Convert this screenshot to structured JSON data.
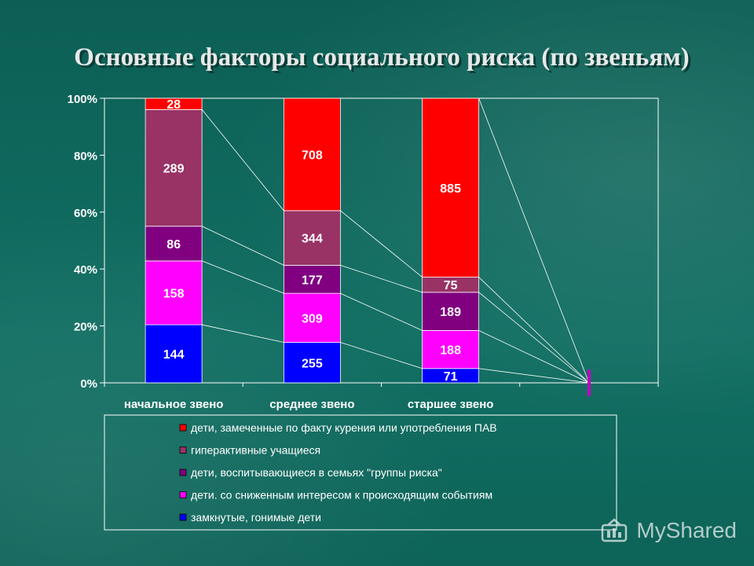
{
  "colors": {
    "background": "#0f6a5f",
    "red": "#ff0000",
    "mauve": "#993366",
    "purple": "#800080",
    "magenta": "#ff00ff",
    "blue": "#0000ff",
    "marker": "#c000c0"
  },
  "watermark": {
    "text": "MyShared",
    "icon": "myshared-logo-icon"
  },
  "chart_data": {
    "type": "bar",
    "stacked": "percent",
    "title": "Основные факторы социального риска (по звеньям)",
    "xlabel": "",
    "ylabel": "",
    "ylim": [
      0,
      100
    ],
    "y_ticks": [
      "0%",
      "20%",
      "40%",
      "60%",
      "80%",
      "100%"
    ],
    "grid": false,
    "legend_position": "bottom",
    "categories": [
      "начальное звено",
      "среднее звено",
      "старшее звено"
    ],
    "series": [
      {
        "name": "замкнутые, гонимые дети",
        "color": "#0000ff",
        "values": [
          144,
          255,
          71
        ]
      },
      {
        "name": "дети. со сниженным интересом к происходящим событиям",
        "color": "#ff00ff",
        "values": [
          158,
          309,
          188
        ]
      },
      {
        "name": "дети, воспитывающиеся в семьях \"группы риска\"",
        "color": "#800080",
        "values": [
          86,
          177,
          189
        ]
      },
      {
        "name": "гиперактивные учащиеся",
        "color": "#993366",
        "values": [
          289,
          344,
          75
        ]
      },
      {
        "name": "дети, замеченные по факту курения или употребления ПАВ",
        "color": "#ff0000",
        "values": [
          28,
          708,
          885
        ]
      }
    ]
  }
}
